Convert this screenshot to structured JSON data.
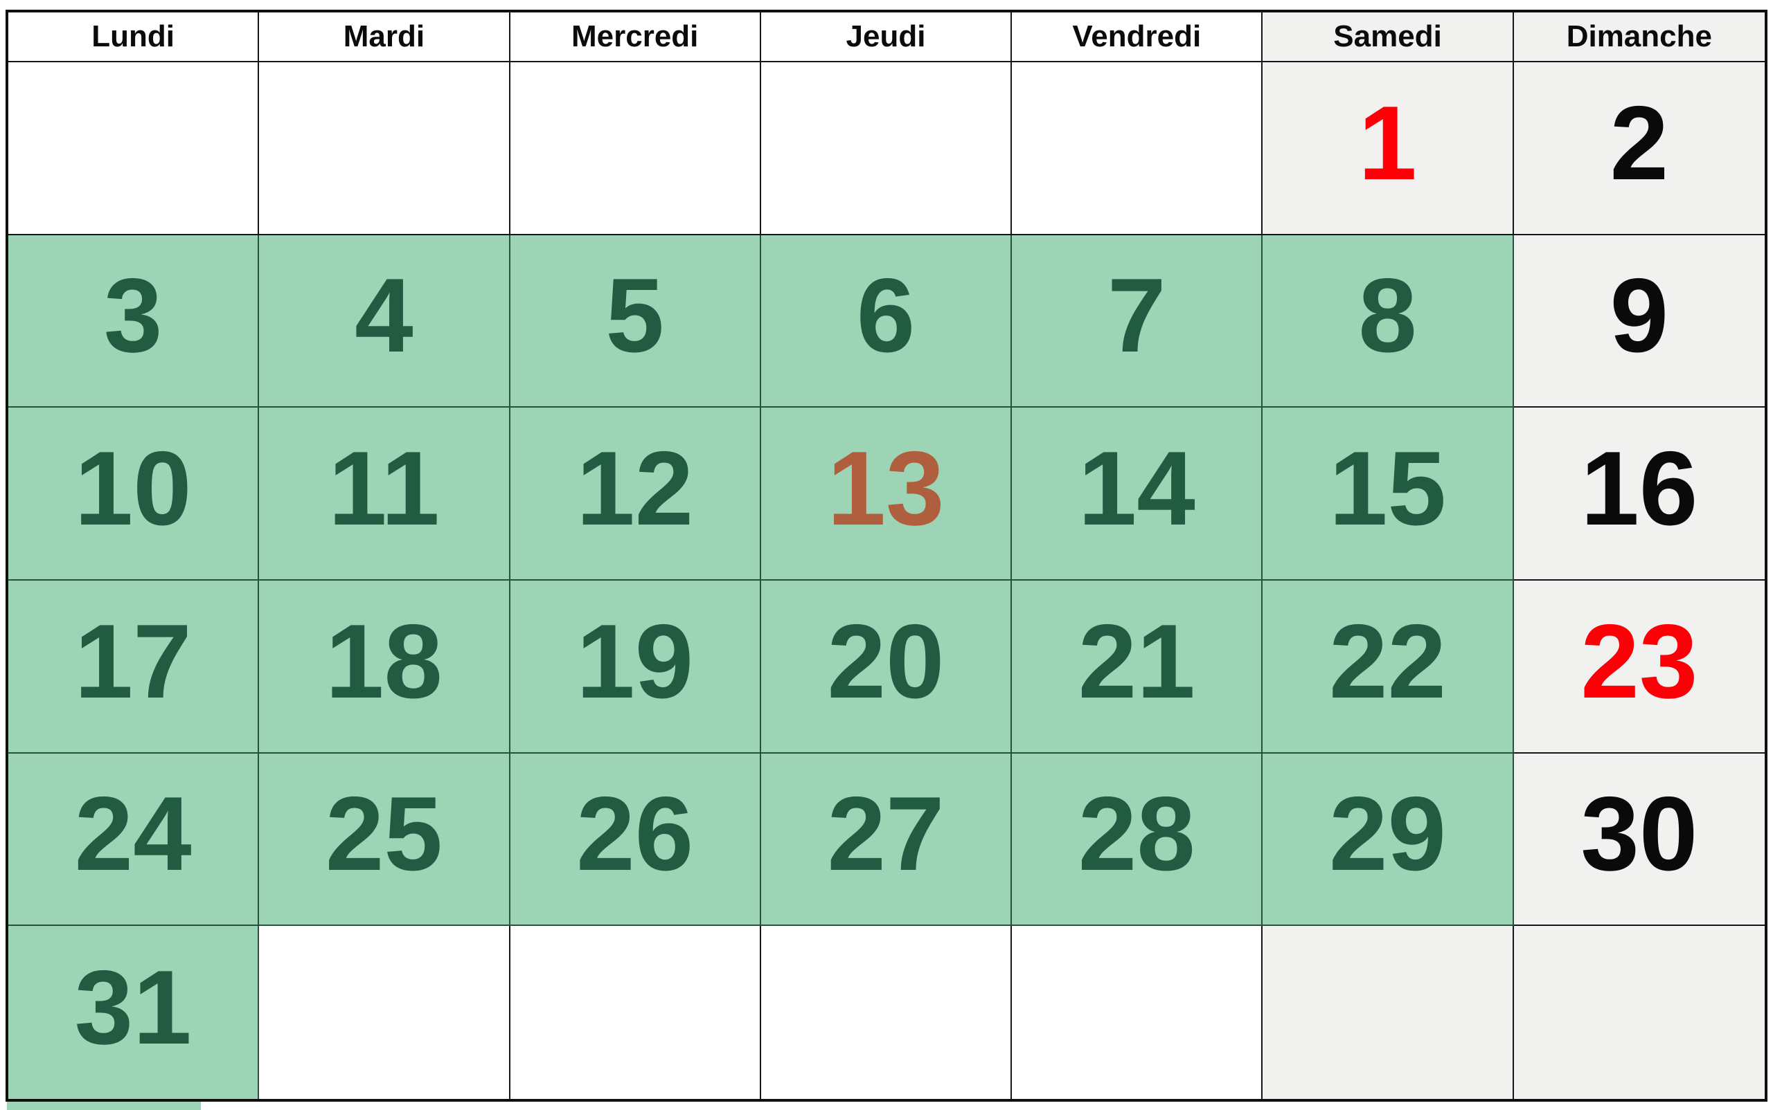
{
  "calendar": {
    "day_headers": [
      "Lundi",
      "Mardi",
      "Mercredi",
      "Jeudi",
      "Vendredi",
      "Samedi",
      "Dimanche"
    ],
    "weeks": [
      [
        "",
        "",
        "",
        "",
        "",
        "1",
        "2"
      ],
      [
        "3",
        "4",
        "5",
        "6",
        "7",
        "8",
        "9"
      ],
      [
        "10",
        "11",
        "12",
        "13",
        "14",
        "15",
        "16"
      ],
      [
        "17",
        "18",
        "19",
        "20",
        "21",
        "22",
        "23"
      ],
      [
        "24",
        "25",
        "26",
        "27",
        "28",
        "29",
        "30"
      ],
      [
        "31",
        "",
        "",
        "",
        "",
        "",
        ""
      ]
    ],
    "highlighted_green_days": [
      "3",
      "4",
      "5",
      "6",
      "7",
      "8",
      "10",
      "11",
      "12",
      "14",
      "15",
      "17",
      "18",
      "19",
      "20",
      "21",
      "22",
      "24",
      "25",
      "26",
      "27",
      "28",
      "29",
      "31"
    ],
    "red_days": [
      "1",
      "23"
    ],
    "brown_days": [
      "13"
    ],
    "palette": {
      "highlight_green_bg": "#9CD4B5",
      "highlight_green_text": "#215C42",
      "weekend_gray_bg": "#F1F1F0",
      "holiday_red_text": "#FB0006",
      "special_brown_text": "#B05F3E",
      "default_text": "#0A0A0A",
      "grid_border": "#161616"
    }
  }
}
